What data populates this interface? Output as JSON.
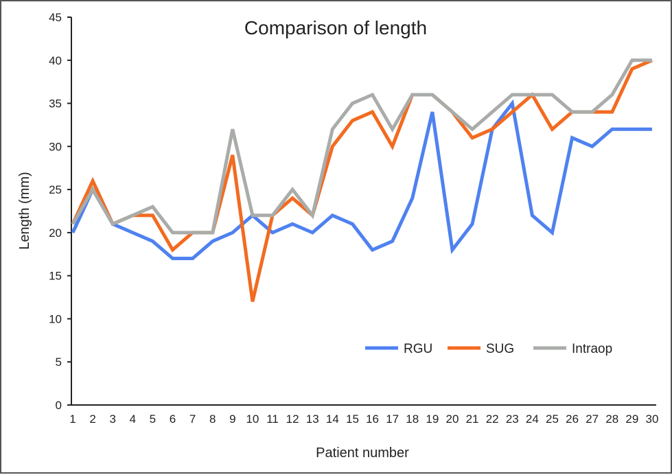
{
  "chart_data": {
    "type": "line",
    "title": "Comparison of length",
    "xlabel": "Patient number",
    "ylabel": "Length (mm)",
    "ylim": [
      0,
      45
    ],
    "yticks": [
      0,
      5,
      10,
      15,
      20,
      25,
      30,
      35,
      40,
      45
    ],
    "x": [
      1,
      2,
      3,
      4,
      5,
      6,
      7,
      8,
      9,
      10,
      11,
      12,
      13,
      14,
      15,
      16,
      17,
      18,
      19,
      20,
      21,
      22,
      23,
      24,
      25,
      26,
      27,
      28,
      29,
      30
    ],
    "grid": false,
    "legend_position": "bottom-right",
    "series": [
      {
        "name": "RGU",
        "color": "#4f81f0",
        "values": [
          20,
          25,
          21,
          20,
          19,
          17,
          17,
          19,
          20,
          22,
          20,
          21,
          20,
          22,
          21,
          18,
          19,
          24,
          34,
          18,
          21,
          32,
          35,
          22,
          20,
          31,
          30,
          32,
          32,
          32
        ]
      },
      {
        "name": "SUG",
        "color": "#f26b21",
        "values": [
          21,
          26,
          21,
          22,
          22,
          18,
          20,
          20,
          29,
          12,
          22,
          24,
          22,
          30,
          33,
          34,
          30,
          36,
          36,
          34,
          31,
          32,
          34,
          36,
          32,
          34,
          34,
          34,
          39,
          40
        ]
      },
      {
        "name": "Intraop",
        "color": "#a9aca9",
        "values": [
          21,
          25,
          21,
          22,
          23,
          20,
          20,
          20,
          32,
          22,
          22,
          25,
          22,
          32,
          35,
          36,
          32,
          36,
          36,
          34,
          32,
          34,
          36,
          36,
          36,
          34,
          34,
          36,
          40,
          40
        ]
      }
    ]
  }
}
